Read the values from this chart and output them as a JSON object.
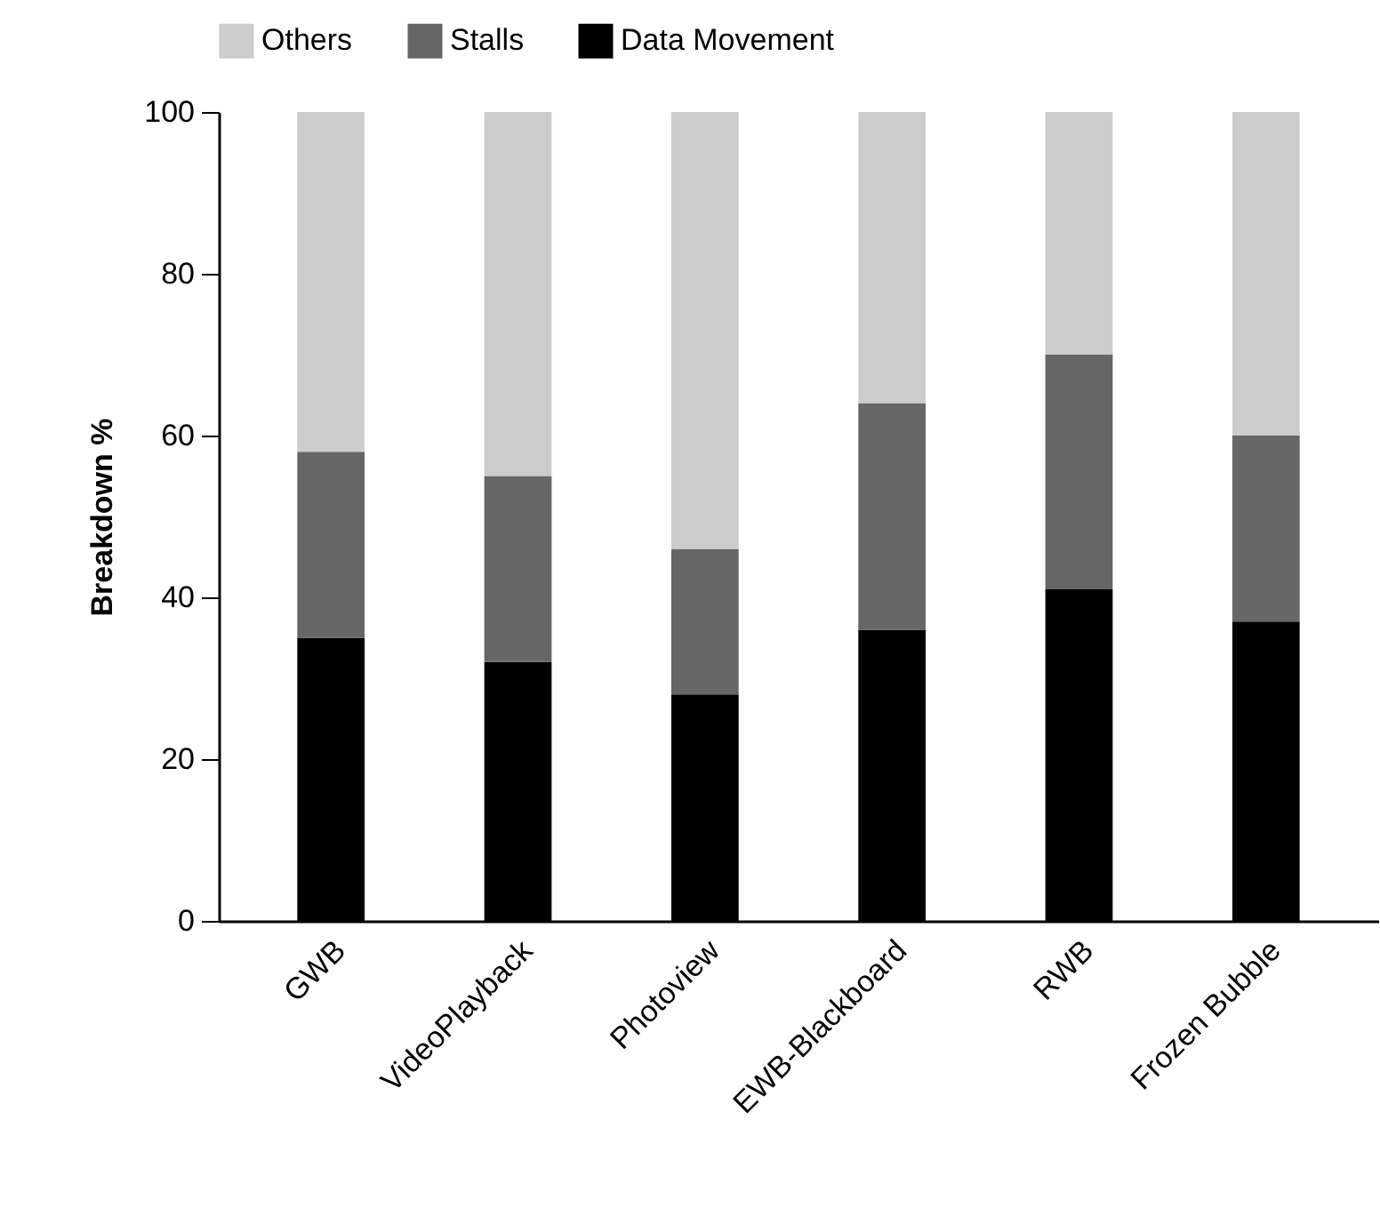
{
  "chart_data": {
    "type": "bar",
    "stacked": true,
    "ylabel": "Breakdown %",
    "categories": [
      "GWB",
      "VideoPlayback",
      "Photoview",
      "EWB-Blackboard",
      "RWB",
      "Frozen Bubble"
    ],
    "series": [
      {
        "name": "Data Movement",
        "color": "#000000",
        "values": [
          35,
          32,
          28,
          36,
          41,
          37
        ]
      },
      {
        "name": "Stalls",
        "color": "#666666",
        "values": [
          23,
          23,
          18,
          28,
          29,
          23
        ]
      },
      {
        "name": "Others",
        "color": "#cccccc",
        "values": [
          42,
          45,
          54,
          36,
          30,
          40
        ]
      }
    ],
    "ylim": [
      0,
      100
    ],
    "yticks": [
      0,
      20,
      40,
      60,
      80,
      100
    ],
    "grid": false,
    "legend": "top"
  }
}
